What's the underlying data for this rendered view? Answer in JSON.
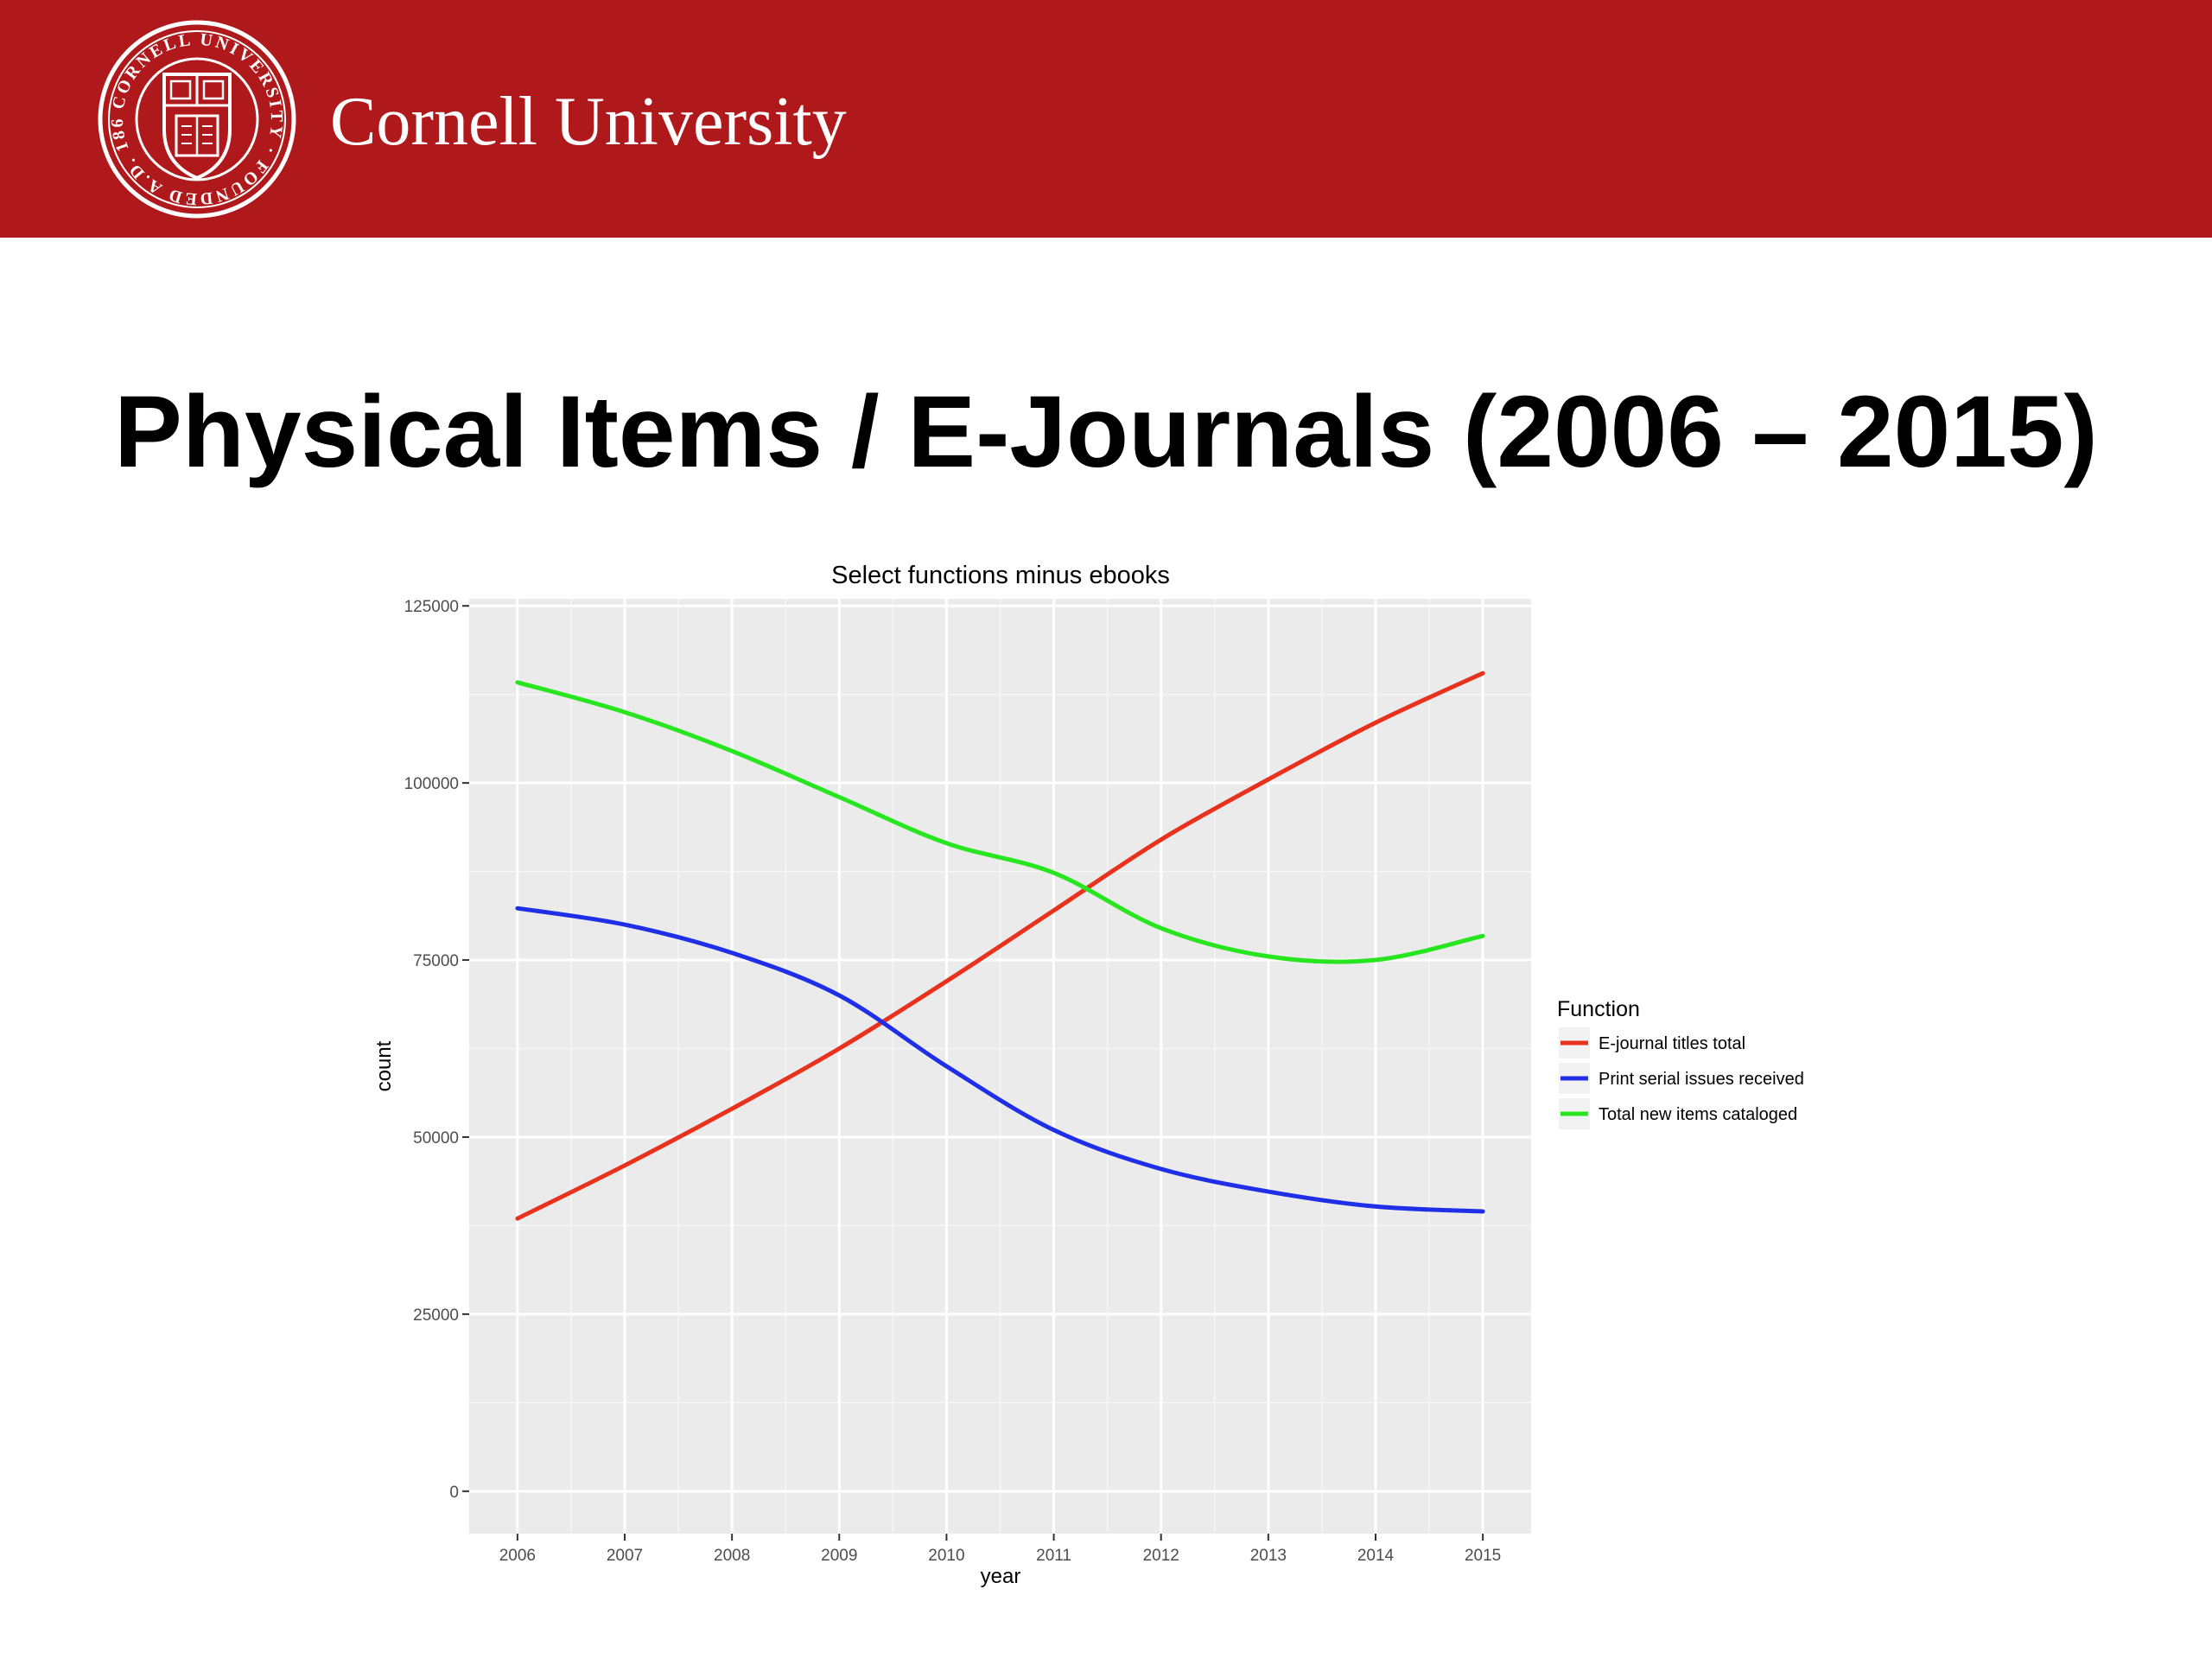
{
  "header": {
    "brand_name": "Cornell University",
    "seal_icon": "cornell-seal-icon",
    "seal_text": "CORNELL UNIVERSITY · FOUNDED A.D. 1865",
    "background_color": "#b0191b"
  },
  "slide": {
    "title": "Physical Items / E-Journals (2006 – 2015)"
  },
  "chart_data": {
    "type": "line",
    "title": "Select functions minus ebooks",
    "xlabel": "year",
    "ylabel": "count",
    "x": [
      2006,
      2007,
      2008,
      2009,
      2010,
      2011,
      2012,
      2013,
      2014,
      2015
    ],
    "x_tick_labels": [
      "2006",
      "2007",
      "2008",
      "2009",
      "2010",
      "2011",
      "2012",
      "2013",
      "2014",
      "2015"
    ],
    "y_ticks": [
      0,
      25000,
      50000,
      75000,
      100000,
      125000
    ],
    "y_tick_labels": [
      "0",
      "25000",
      "50000",
      "75000",
      "100000",
      "125000"
    ],
    "xlim": [
      2005.55,
      2015.45
    ],
    "ylim": [
      -6000,
      126000
    ],
    "grid": true,
    "panel_background": "#ebebeb",
    "legend_title": "Function",
    "legend_position": "right",
    "series": [
      {
        "name": "E-journal titles total",
        "color": "#e8321e",
        "values": [
          38500,
          46000,
          54000,
          62500,
          72000,
          82000,
          92000,
          100500,
          108500,
          115500
        ]
      },
      {
        "name": "Print serial issues received",
        "color": "#1f2fe8",
        "values": [
          82300,
          80000,
          76000,
          70000,
          60000,
          51000,
          45500,
          42300,
          40200,
          39500
        ]
      },
      {
        "name": "Total new items cataloged",
        "color": "#27e51f",
        "values": [
          114200,
          110000,
          104500,
          98000,
          91500,
          87300,
          79500,
          75500,
          75000,
          78400
        ]
      }
    ]
  }
}
